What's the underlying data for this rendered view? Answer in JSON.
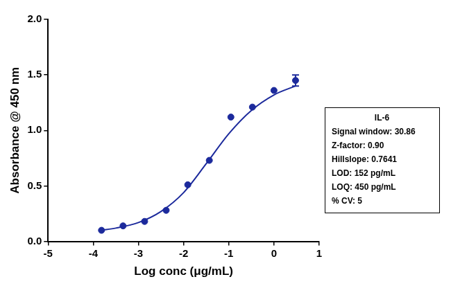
{
  "chart_data": {
    "type": "scatter",
    "x_label": "Log conc (μg/mL)",
    "y_label": "Absorbance @ 450 nm",
    "color": "#1c2a9c",
    "points": {
      "x": [
        -3.817,
        -3.34,
        -2.863,
        -2.386,
        -1.908,
        -1.431,
        -0.954,
        -0.477,
        0.0,
        0.477
      ],
      "values": [
        0.1,
        0.14,
        0.18,
        0.28,
        0.51,
        0.73,
        1.12,
        1.21,
        1.36,
        1.45
      ],
      "errors": [
        0,
        0,
        0,
        0,
        0,
        0,
        0,
        0,
        0,
        0.05
      ],
      "marker": "circle"
    },
    "curve": {
      "x": [
        -3.817,
        -3.5,
        -3.0,
        -2.5,
        -2.0,
        -1.5,
        -1.0,
        -0.5,
        0.0,
        0.477
      ],
      "values": [
        0.1,
        0.12,
        0.17,
        0.27,
        0.44,
        0.7,
        0.97,
        1.18,
        1.32,
        1.4
      ],
      "line_style": "solid"
    },
    "xlim": [
      -5,
      1
    ],
    "xticks": [
      -5,
      -4,
      -3,
      -2,
      -1,
      0,
      1
    ],
    "ylim": [
      0,
      2
    ],
    "yticks": [
      {
        "value": 0,
        "label": "0.0"
      },
      {
        "value": 0.5,
        "label": "0.5"
      },
      {
        "value": 1,
        "label": "1.0"
      },
      {
        "value": 1.5,
        "label": "1.5"
      },
      {
        "value": 2,
        "label": "2.0"
      }
    ],
    "grid": false,
    "annotation": {
      "title": "IL-6",
      "lines": [
        "Signal window: 30.86",
        "Z-factor: 0.90",
        "Hillslope: 0.7641",
        "LOD: 152 pg/mL",
        "LOQ: 450 pg/mL",
        "% CV: 5"
      ]
    }
  }
}
